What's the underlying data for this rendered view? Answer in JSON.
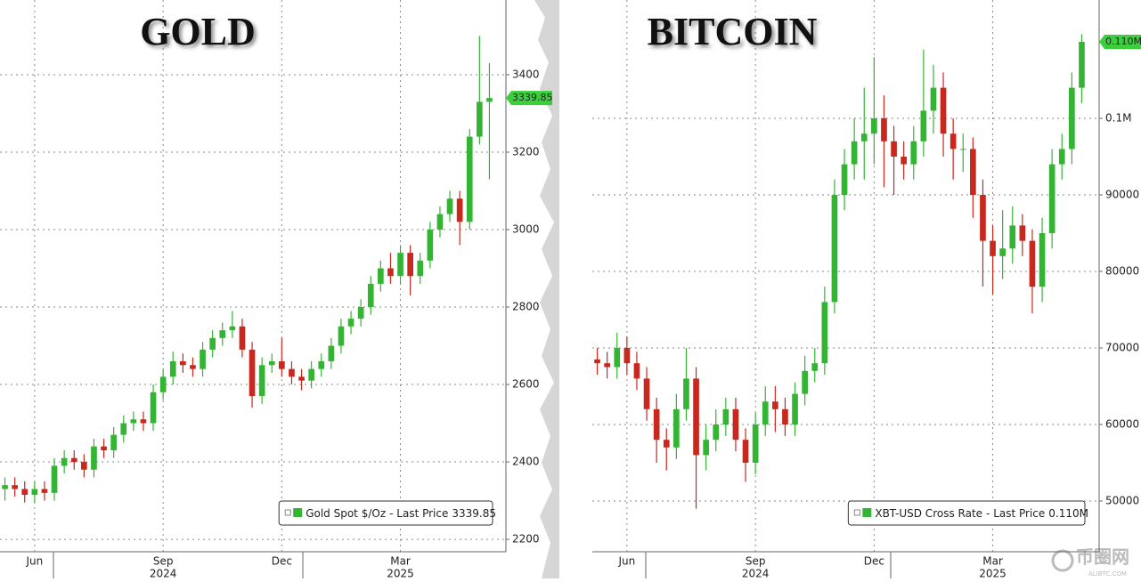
{
  "chart_data": [
    {
      "type": "candlestick",
      "title": "GOLD",
      "categories": [
        null,
        null,
        null,
        "Jun",
        null,
        null,
        null,
        null,
        null,
        null,
        null,
        null,
        null,
        null,
        null,
        null,
        "Sep",
        null,
        null,
        null,
        null,
        null,
        null,
        null,
        null,
        null,
        null,
        null,
        "Dec",
        null,
        null,
        null,
        null,
        null,
        null,
        null,
        null,
        null,
        null,
        null,
        "Mar",
        null,
        null,
        null,
        null,
        null,
        null,
        null,
        null,
        null
      ],
      "x_years": [
        "2024",
        "2025"
      ],
      "series": [
        {
          "name": "Gold Spot $/Oz",
          "up_color": "#33b533",
          "down_color": "#c8281e",
          "open": [
            2330,
            2340,
            2330,
            2315,
            2330,
            2320,
            2390,
            2410,
            2400,
            2380,
            2440,
            2430,
            2470,
            2500,
            2510,
            2500,
            2580,
            2620,
            2660,
            2650,
            2640,
            2690,
            2720,
            2740,
            2750,
            2690,
            2570,
            2650,
            2660,
            2640,
            2620,
            2610,
            2640,
            2660,
            2700,
            2750,
            2770,
            2800,
            2860,
            2900,
            2880,
            2940,
            2880,
            2920,
            3000,
            3040,
            3080,
            3020,
            3240,
            3330
          ],
          "high": [
            2360,
            2360,
            2350,
            2350,
            2350,
            2410,
            2430,
            2430,
            2420,
            2460,
            2460,
            2490,
            2520,
            2530,
            2530,
            2600,
            2640,
            2685,
            2680,
            2670,
            2710,
            2740,
            2760,
            2790,
            2770,
            2710,
            2670,
            2680,
            2720,
            2660,
            2640,
            2660,
            2680,
            2720,
            2770,
            2790,
            2820,
            2880,
            2920,
            2940,
            2960,
            2960,
            2940,
            3020,
            3060,
            3100,
            3100,
            3260,
            3500,
            3430
          ],
          "low": [
            2300,
            2310,
            2295,
            2295,
            2300,
            2300,
            2370,
            2380,
            2360,
            2360,
            2410,
            2410,
            2450,
            2480,
            2480,
            2480,
            2560,
            2600,
            2630,
            2620,
            2620,
            2670,
            2700,
            2720,
            2670,
            2540,
            2550,
            2630,
            2620,
            2600,
            2585,
            2590,
            2620,
            2640,
            2680,
            2730,
            2750,
            2780,
            2840,
            2860,
            2860,
            2830,
            2860,
            2900,
            2980,
            3020,
            2960,
            3000,
            3220,
            3130
          ],
          "close": [
            2340,
            2330,
            2315,
            2330,
            2320,
            2390,
            2410,
            2400,
            2380,
            2440,
            2430,
            2470,
            2500,
            2510,
            2500,
            2580,
            2620,
            2660,
            2650,
            2640,
            2690,
            2720,
            2740,
            2750,
            2690,
            2570,
            2650,
            2660,
            2640,
            2620,
            2610,
            2640,
            2660,
            2700,
            2750,
            2770,
            2800,
            2860,
            2900,
            2880,
            2940,
            2880,
            2920,
            3000,
            3040,
            3080,
            3020,
            3240,
            3330,
            3339.85
          ],
          "legend_note": "- Last Price",
          "last_price": 3339.85,
          "last_price_label": "3339.85"
        }
      ],
      "ylim": [
        2168,
        3593
      ],
      "yticks": [
        2200,
        2400,
        2600,
        2800,
        3000,
        3200,
        3400
      ],
      "grid": true,
      "tag_color": "#3ccf3c"
    },
    {
      "type": "candlestick",
      "title": "BITCOIN",
      "categories": [
        null,
        null,
        null,
        "Jun",
        null,
        null,
        null,
        null,
        null,
        null,
        null,
        null,
        null,
        null,
        null,
        null,
        "Sep",
        null,
        null,
        null,
        null,
        null,
        null,
        null,
        null,
        null,
        null,
        null,
        "Dec",
        null,
        null,
        null,
        null,
        null,
        null,
        null,
        null,
        null,
        null,
        null,
        "Mar",
        null,
        null,
        null,
        null,
        null,
        null,
        null,
        null,
        null
      ],
      "x_years": [
        "2024",
        "2025"
      ],
      "series": [
        {
          "name": "XBT-USD Cross Rate",
          "up_color": "#33b533",
          "down_color": "#c8281e",
          "open": [
            68500,
            68000,
            67500,
            70000,
            68000,
            66000,
            62000,
            58000,
            57000,
            62000,
            66000,
            56000,
            58000,
            60000,
            62000,
            58000,
            55000,
            60000,
            63000,
            62000,
            60000,
            64000,
            67000,
            68000,
            76000,
            90000,
            94000,
            97000,
            98000,
            100000,
            97000,
            95000,
            94000,
            97000,
            101000,
            104000,
            98000,
            96000,
            96000,
            90000,
            84000,
            82000,
            83000,
            86000,
            84000,
            78000,
            85000,
            94000,
            96000,
            104000
          ],
          "high": [
            70000,
            69500,
            72000,
            71500,
            69500,
            67500,
            63500,
            59500,
            64000,
            70000,
            67500,
            60000,
            62000,
            63500,
            63500,
            59500,
            61500,
            65000,
            65000,
            63500,
            65500,
            69000,
            70000,
            78000,
            92000,
            96000,
            100000,
            104000,
            108000,
            103000,
            99000,
            97000,
            99000,
            109000,
            107000,
            106000,
            100000,
            98000,
            97500,
            92000,
            86000,
            88000,
            88500,
            87500,
            85500,
            87000,
            96000,
            98000,
            106000,
            111000
          ],
          "low": [
            66500,
            66000,
            66000,
            66500,
            64500,
            60500,
            55000,
            54000,
            55500,
            60500,
            49000,
            54000,
            56500,
            58500,
            56500,
            52500,
            53500,
            58500,
            59000,
            58500,
            58500,
            62500,
            65500,
            66500,
            74500,
            88000,
            92000,
            92000,
            94000,
            91000,
            90000,
            92000,
            92000,
            95000,
            98000,
            95000,
            92000,
            93000,
            87000,
            78000,
            77000,
            79000,
            81000,
            82000,
            74500,
            76000,
            83000,
            92000,
            94000,
            102000
          ],
          "close": [
            68000,
            67500,
            70000,
            68000,
            66000,
            62000,
            58000,
            57000,
            62000,
            66000,
            56000,
            58000,
            60000,
            62000,
            58000,
            55000,
            60000,
            63000,
            62000,
            60000,
            64000,
            67000,
            68000,
            76000,
            90000,
            94000,
            97000,
            98000,
            100000,
            97000,
            95000,
            94000,
            97000,
            101000,
            104000,
            98000,
            96000,
            96000,
            90000,
            84000,
            82000,
            83000,
            86000,
            84000,
            78000,
            85000,
            94000,
            96000,
            104000,
            110000
          ],
          "legend_note": "- Last Price",
          "last_price": 110000,
          "last_price_label": "0.110M"
        }
      ],
      "ylim": [
        43372,
        115465
      ],
      "yticks": [
        50000,
        60000,
        70000,
        80000,
        90000,
        {
          "value": 100000,
          "label": "0.1M"
        }
      ],
      "grid": true,
      "tag_color": "#3ccf3c"
    }
  ],
  "watermark": {
    "name": "币圈网",
    "url": "ALIBTC.COM"
  }
}
